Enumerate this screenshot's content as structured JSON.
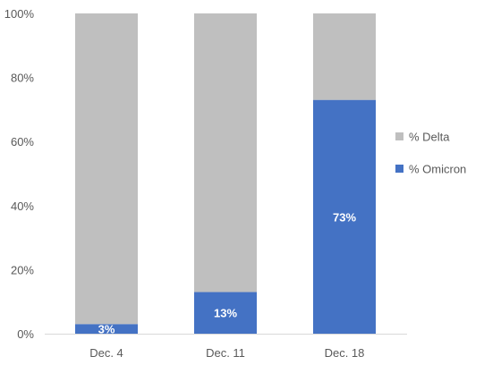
{
  "chart_data": {
    "type": "bar",
    "stacked": true,
    "categories": [
      "Dec. 4",
      "Dec. 11",
      "Dec. 18"
    ],
    "series": [
      {
        "name": "% Omicron",
        "values": [
          3,
          13,
          73
        ],
        "color": "#4472C4"
      },
      {
        "name": "% Delta",
        "values": [
          97,
          87,
          27
        ],
        "color": "#BFBFBF"
      }
    ],
    "data_labels": [
      "3%",
      "13%",
      "73%"
    ],
    "ylim": [
      0,
      100
    ],
    "yticks": [
      0,
      20,
      40,
      60,
      80,
      100
    ],
    "ytick_labels": [
      "0%",
      "20%",
      "40%",
      "60%",
      "80%",
      "100%"
    ],
    "legend_position": "right",
    "legend_order": [
      "% Delta",
      "% Omicron"
    ],
    "grid": false
  }
}
